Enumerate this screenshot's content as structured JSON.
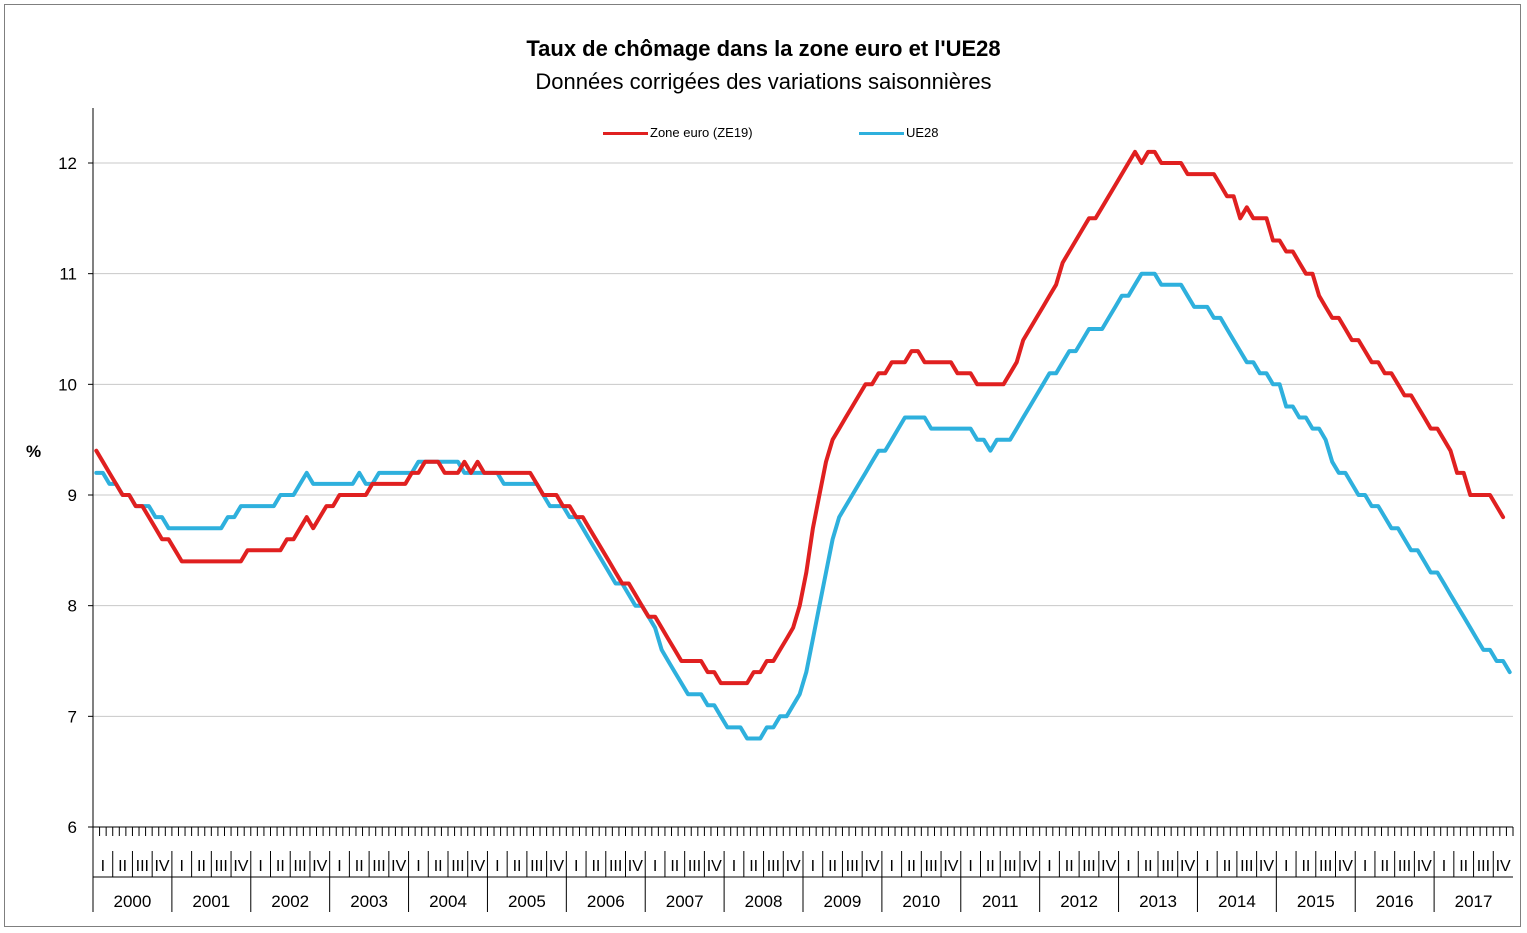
{
  "chart_data": {
    "type": "line",
    "title": "Taux de chômage dans la zone euro et l'UE28",
    "subtitle": "Données corrigées des variations saisonnières",
    "ylabel": "%",
    "ylim": [
      6,
      12.5
    ],
    "yticks": [
      6,
      7,
      8,
      9,
      10,
      11,
      12
    ],
    "grid": true,
    "legend_position": "top-center",
    "x_start": "2000-01",
    "x_frequency": "monthly",
    "years": [
      "2000",
      "2001",
      "2002",
      "2003",
      "2004",
      "2005",
      "2006",
      "2007",
      "2008",
      "2009",
      "2010",
      "2011",
      "2012",
      "2013",
      "2014",
      "2015",
      "2016",
      "2017"
    ],
    "quarters": [
      "I",
      "II",
      "III",
      "IV"
    ],
    "series": [
      {
        "name": "Zone euro (ZE19)",
        "color": "#e02020",
        "values": [
          9.4,
          9.3,
          9.2,
          9.1,
          9.0,
          9.0,
          8.9,
          8.9,
          8.8,
          8.7,
          8.6,
          8.6,
          8.5,
          8.4,
          8.4,
          8.4,
          8.4,
          8.4,
          8.4,
          8.4,
          8.4,
          8.4,
          8.4,
          8.5,
          8.5,
          8.5,
          8.5,
          8.5,
          8.5,
          8.6,
          8.6,
          8.7,
          8.8,
          8.7,
          8.8,
          8.9,
          8.9,
          9.0,
          9.0,
          9.0,
          9.0,
          9.0,
          9.1,
          9.1,
          9.1,
          9.1,
          9.1,
          9.1,
          9.2,
          9.2,
          9.3,
          9.3,
          9.3,
          9.2,
          9.2,
          9.2,
          9.3,
          9.2,
          9.3,
          9.2,
          9.2,
          9.2,
          9.2,
          9.2,
          9.2,
          9.2,
          9.2,
          9.1,
          9.0,
          9.0,
          9.0,
          8.9,
          8.9,
          8.8,
          8.8,
          8.7,
          8.6,
          8.5,
          8.4,
          8.3,
          8.2,
          8.2,
          8.1,
          8.0,
          7.9,
          7.9,
          7.8,
          7.7,
          7.6,
          7.5,
          7.5,
          7.5,
          7.5,
          7.4,
          7.4,
          7.3,
          7.3,
          7.3,
          7.3,
          7.3,
          7.4,
          7.4,
          7.5,
          7.5,
          7.6,
          7.7,
          7.8,
          8.0,
          8.3,
          8.7,
          9.0,
          9.3,
          9.5,
          9.6,
          9.7,
          9.8,
          9.9,
          10.0,
          10.0,
          10.1,
          10.1,
          10.2,
          10.2,
          10.2,
          10.3,
          10.3,
          10.2,
          10.2,
          10.2,
          10.2,
          10.2,
          10.1,
          10.1,
          10.1,
          10.0,
          10.0,
          10.0,
          10.0,
          10.0,
          10.1,
          10.2,
          10.4,
          10.5,
          10.6,
          10.7,
          10.8,
          10.9,
          11.1,
          11.2,
          11.3,
          11.4,
          11.5,
          11.5,
          11.6,
          11.7,
          11.8,
          11.9,
          12.0,
          12.1,
          12.0,
          12.1,
          12.1,
          12.0,
          12.0,
          12.0,
          12.0,
          11.9,
          11.9,
          11.9,
          11.9,
          11.9,
          11.8,
          11.7,
          11.7,
          11.5,
          11.6,
          11.5,
          11.5,
          11.5,
          11.3,
          11.3,
          11.2,
          11.2,
          11.1,
          11.0,
          11.0,
          10.8,
          10.7,
          10.6,
          10.6,
          10.5,
          10.4,
          10.4,
          10.3,
          10.2,
          10.2,
          10.1,
          10.1,
          10.0,
          9.9,
          9.9,
          9.8,
          9.7,
          9.6,
          9.6,
          9.5,
          9.4,
          9.2,
          9.2,
          9.0,
          9.0,
          9.0,
          9.0,
          8.9,
          8.8
        ]
      },
      {
        "name": "UE28",
        "color": "#2eb0dd",
        "values": [
          9.2,
          9.2,
          9.1,
          9.1,
          9.0,
          9.0,
          8.9,
          8.9,
          8.9,
          8.8,
          8.8,
          8.7,
          8.7,
          8.7,
          8.7,
          8.7,
          8.7,
          8.7,
          8.7,
          8.7,
          8.8,
          8.8,
          8.9,
          8.9,
          8.9,
          8.9,
          8.9,
          8.9,
          9.0,
          9.0,
          9.0,
          9.1,
          9.2,
          9.1,
          9.1,
          9.1,
          9.1,
          9.1,
          9.1,
          9.1,
          9.2,
          9.1,
          9.1,
          9.2,
          9.2,
          9.2,
          9.2,
          9.2,
          9.2,
          9.3,
          9.3,
          9.3,
          9.3,
          9.3,
          9.3,
          9.3,
          9.2,
          9.2,
          9.2,
          9.2,
          9.2,
          9.2,
          9.1,
          9.1,
          9.1,
          9.1,
          9.1,
          9.1,
          9.0,
          8.9,
          8.9,
          8.9,
          8.8,
          8.8,
          8.7,
          8.6,
          8.5,
          8.4,
          8.3,
          8.2,
          8.2,
          8.1,
          8.0,
          8.0,
          7.9,
          7.8,
          7.6,
          7.5,
          7.4,
          7.3,
          7.2,
          7.2,
          7.2,
          7.1,
          7.1,
          7.0,
          6.9,
          6.9,
          6.9,
          6.8,
          6.8,
          6.8,
          6.9,
          6.9,
          7.0,
          7.0,
          7.1,
          7.2,
          7.4,
          7.7,
          8.0,
          8.3,
          8.6,
          8.8,
          8.9,
          9.0,
          9.1,
          9.2,
          9.3,
          9.4,
          9.4,
          9.5,
          9.6,
          9.7,
          9.7,
          9.7,
          9.7,
          9.6,
          9.6,
          9.6,
          9.6,
          9.6,
          9.6,
          9.6,
          9.5,
          9.5,
          9.4,
          9.5,
          9.5,
          9.5,
          9.6,
          9.7,
          9.8,
          9.9,
          10.0,
          10.1,
          10.1,
          10.2,
          10.3,
          10.3,
          10.4,
          10.5,
          10.5,
          10.5,
          10.6,
          10.7,
          10.8,
          10.8,
          10.9,
          11.0,
          11.0,
          11.0,
          10.9,
          10.9,
          10.9,
          10.9,
          10.8,
          10.7,
          10.7,
          10.7,
          10.6,
          10.6,
          10.5,
          10.4,
          10.3,
          10.2,
          10.2,
          10.1,
          10.1,
          10.0,
          10.0,
          9.8,
          9.8,
          9.7,
          9.7,
          9.6,
          9.6,
          9.5,
          9.3,
          9.2,
          9.2,
          9.1,
          9.0,
          9.0,
          8.9,
          8.9,
          8.8,
          8.7,
          8.7,
          8.6,
          8.5,
          8.5,
          8.4,
          8.3,
          8.3,
          8.2,
          8.1,
          8.0,
          7.9,
          7.8,
          7.7,
          7.6,
          7.6,
          7.5,
          7.5,
          7.4
        ]
      }
    ]
  }
}
